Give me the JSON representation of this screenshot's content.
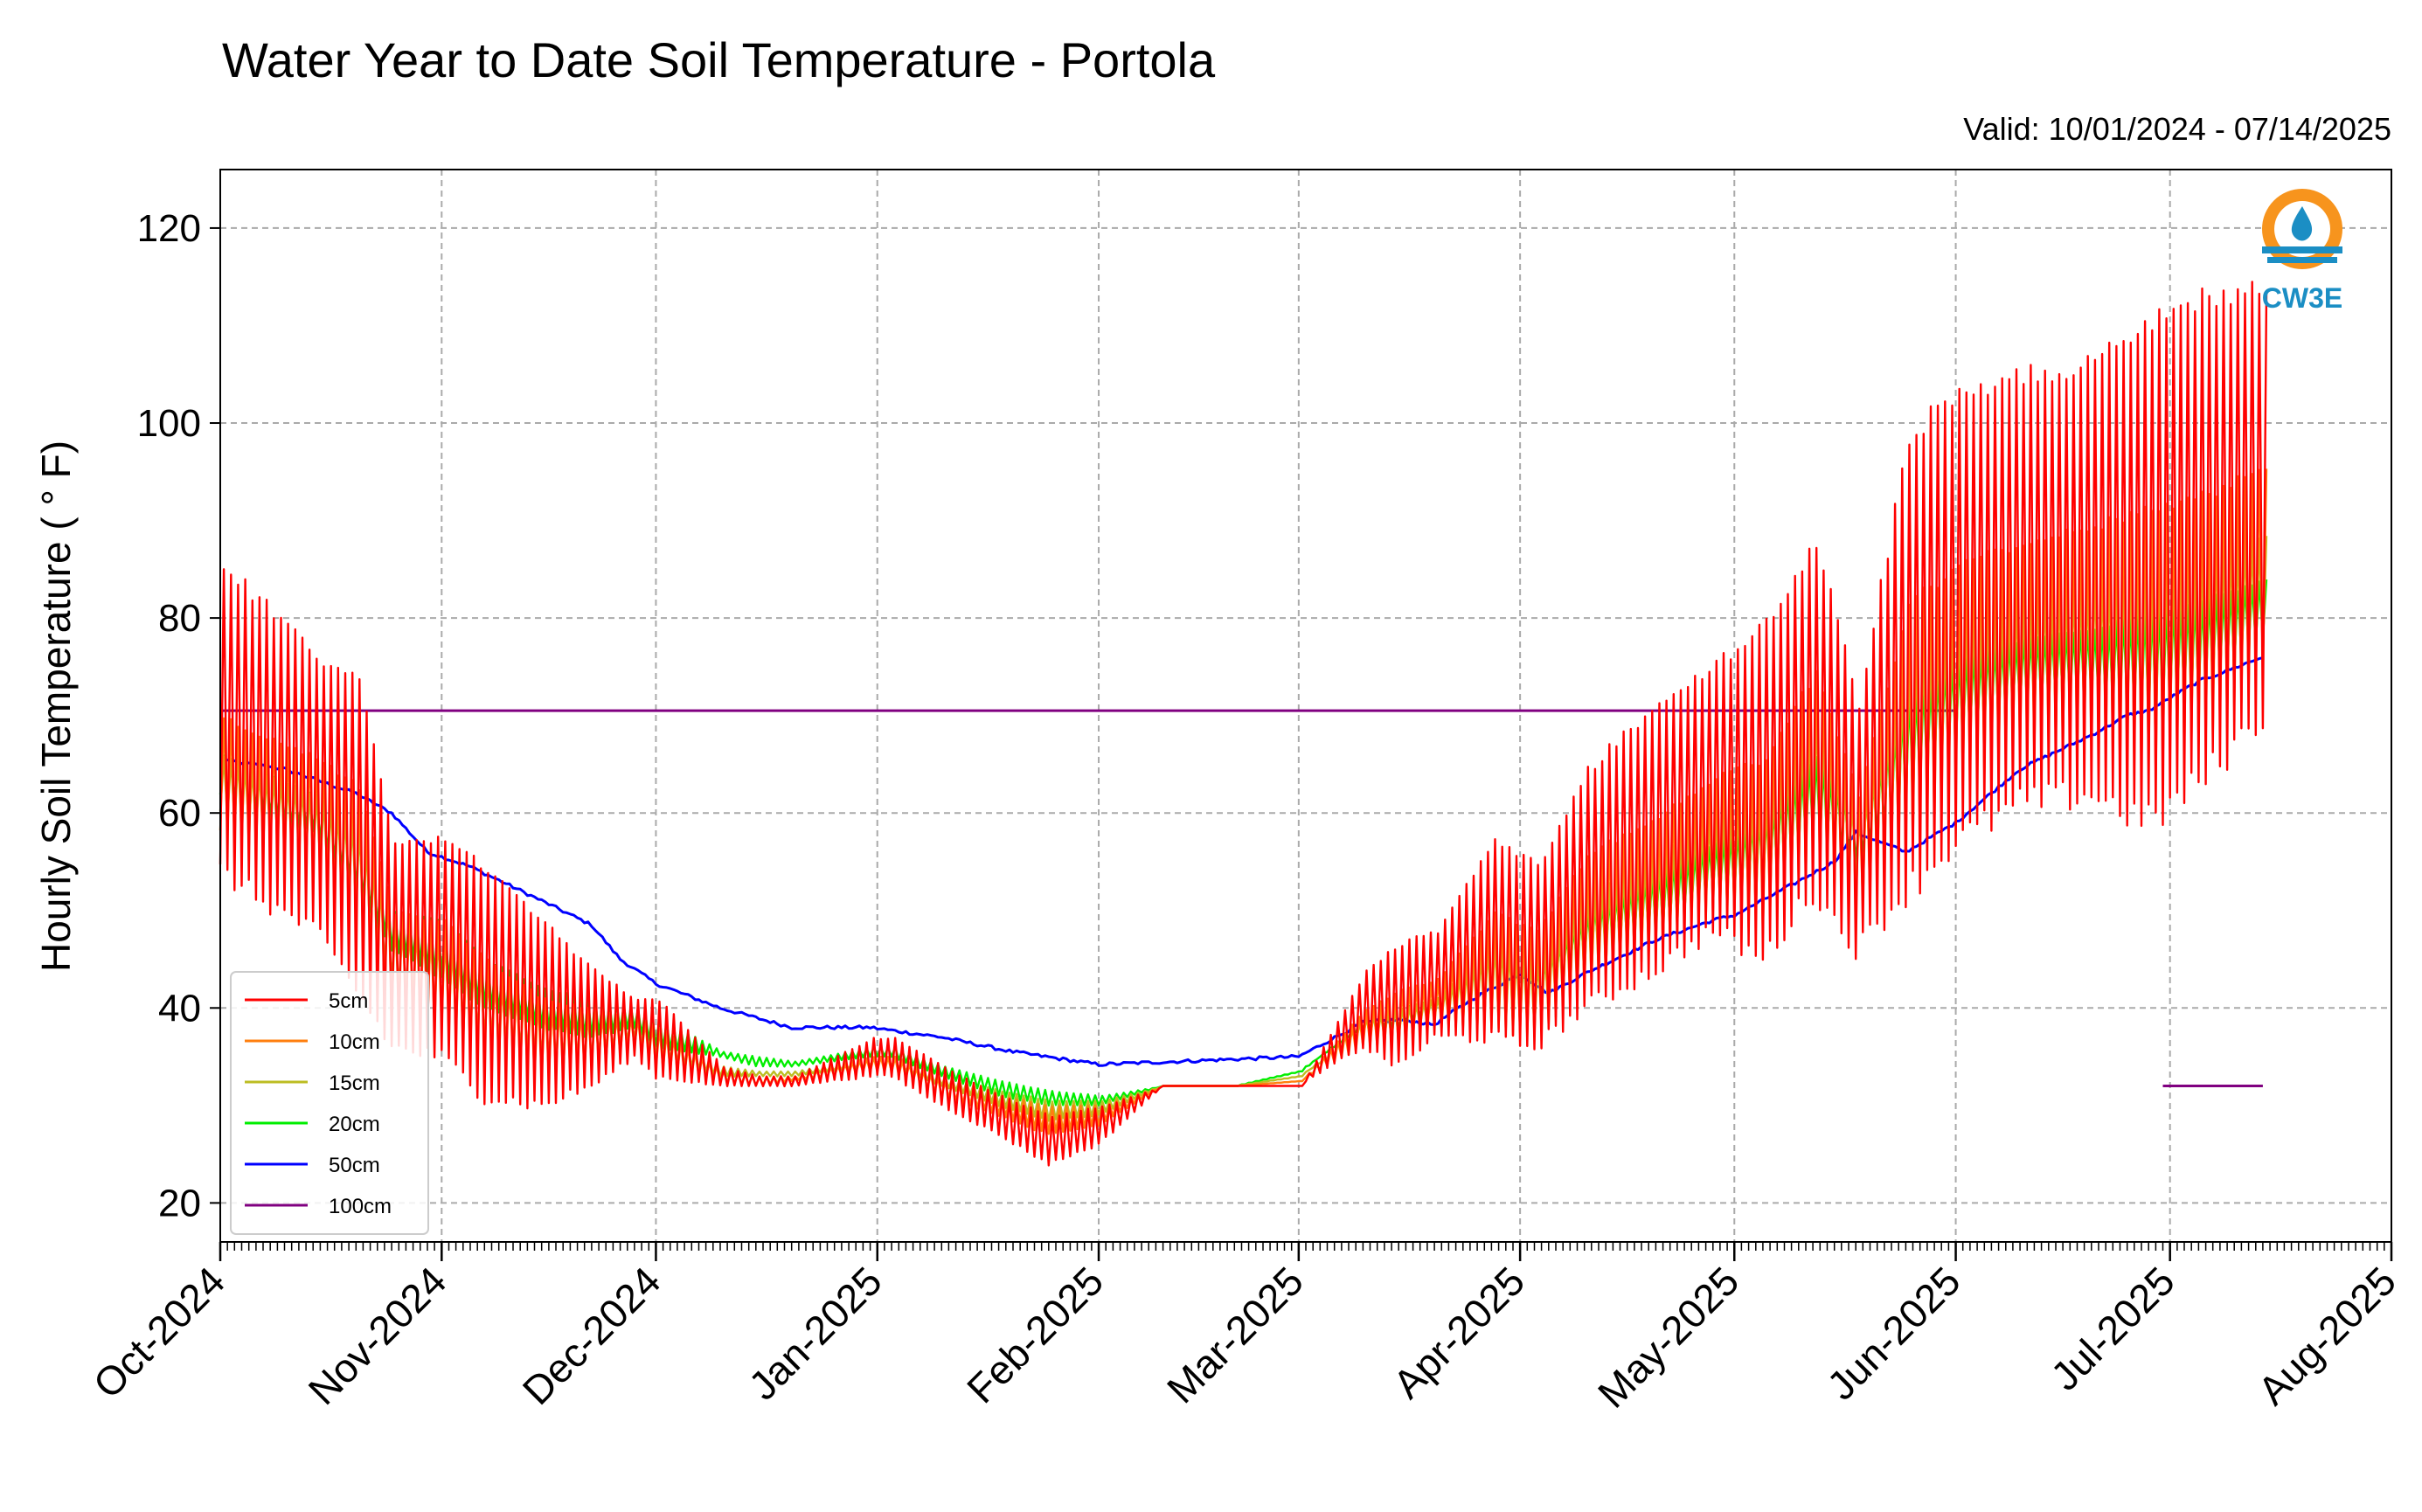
{
  "chart_data": {
    "type": "line",
    "title": "Water Year to Date Soil Temperature - Portola",
    "subtitle": "Valid: 10/01/2024 - 07/14/2025",
    "ylabel": "Hourly Soil Temperature ( ° F)",
    "xlabel": "",
    "ylim": [
      16,
      126
    ],
    "xlim": [
      "2024-10-01",
      "2025-08-01"
    ],
    "yticks": [
      "20",
      "40",
      "60",
      "80",
      "100",
      "120"
    ],
    "xticks": [
      "Oct-2024",
      "Nov-2024",
      "Dec-2024",
      "Jan-2025",
      "Feb-2025",
      "Mar-2025",
      "Apr-2025",
      "May-2025",
      "Jun-2025",
      "Jul-2025",
      "Aug-2025"
    ],
    "xtick_dates": [
      "2024-10-01",
      "2024-11-01",
      "2024-12-01",
      "2025-01-01",
      "2025-02-01",
      "2025-03-01",
      "2025-04-01",
      "2025-05-01",
      "2025-06-01",
      "2025-07-01",
      "2025-08-01"
    ],
    "grid": true,
    "legend_position": "lower-left",
    "logo_text": "CW3E",
    "series": [
      {
        "name": "5cm",
        "color": "#ff0000",
        "diurnal": true,
        "dates": [
          "2024-10-01",
          "2024-10-07",
          "2024-10-14",
          "2024-10-20",
          "2024-10-25",
          "2024-11-01",
          "2024-11-07",
          "2024-11-15",
          "2024-11-22",
          "2024-11-28",
          "2024-12-01",
          "2024-12-10",
          "2024-12-15",
          "2024-12-20",
          "2024-12-31",
          "2025-01-03",
          "2025-01-10",
          "2025-01-18",
          "2025-01-25",
          "2025-02-01",
          "2025-02-10",
          "2025-02-20",
          "2025-03-01",
          "2025-03-10",
          "2025-03-15",
          "2025-03-20",
          "2025-03-28",
          "2025-04-03",
          "2025-04-10",
          "2025-04-20",
          "2025-04-28",
          "2025-05-05",
          "2025-05-12",
          "2025-05-18",
          "2025-05-25",
          "2025-06-01",
          "2025-06-10",
          "2025-06-20",
          "2025-06-28",
          "2025-07-05",
          "2025-07-14"
        ],
        "low": [
          54,
          51,
          48,
          42,
          36,
          35,
          31,
          30,
          32,
          35,
          33,
          32,
          32,
          32,
          33,
          33,
          30,
          27,
          24,
          26,
          32,
          32,
          32,
          36,
          34,
          37,
          37,
          36,
          40,
          44,
          48,
          45,
          52,
          46,
          52,
          57,
          61,
          62,
          59,
          63,
          70
        ],
        "high": [
          86,
          82,
          77,
          74,
          57,
          58,
          55,
          49,
          44,
          41,
          41,
          34,
          33,
          33,
          37,
          37,
          34,
          31,
          29,
          30,
          32,
          32,
          32,
          44,
          47,
          48,
          58,
          55,
          65,
          72,
          76,
          80,
          89,
          72,
          100,
          104,
          106,
          107,
          112,
          114,
          115
        ]
      },
      {
        "name": "10cm",
        "color": "#ff7f0e",
        "diurnal": true,
        "dates": [
          "2024-10-01",
          "2024-10-07",
          "2024-10-14",
          "2024-10-20",
          "2024-10-25",
          "2024-11-01",
          "2024-11-07",
          "2024-11-15",
          "2024-11-22",
          "2024-11-28",
          "2024-12-01",
          "2024-12-10",
          "2024-12-15",
          "2024-12-20",
          "2024-12-31",
          "2025-01-03",
          "2025-01-10",
          "2025-01-18",
          "2025-01-25",
          "2025-02-01",
          "2025-02-10",
          "2025-02-20",
          "2025-03-01",
          "2025-03-10",
          "2025-03-15",
          "2025-03-20",
          "2025-03-28",
          "2025-04-03",
          "2025-04-10",
          "2025-04-20",
          "2025-04-28",
          "2025-05-05",
          "2025-05-12",
          "2025-05-18",
          "2025-05-25",
          "2025-06-01",
          "2025-06-10",
          "2025-06-20",
          "2025-06-28",
          "2025-07-05",
          "2025-07-14"
        ],
        "low": [
          58,
          56,
          54,
          48,
          40,
          38,
          35,
          33,
          34,
          36,
          34,
          32.5,
          32,
          32.5,
          33.5,
          33.5,
          31,
          29,
          27,
          28,
          32,
          32,
          32.5,
          36,
          36,
          38,
          38,
          37,
          42,
          46,
          50,
          48,
          55,
          50,
          56,
          62,
          66,
          67,
          64,
          67,
          74
        ],
        "high": [
          70,
          68,
          66,
          63,
          50,
          49,
          45,
          41,
          40,
          39,
          38,
          33.5,
          33,
          33,
          35,
          35,
          32.5,
          31,
          30,
          30,
          32,
          32,
          32.5,
          40,
          42,
          43,
          50,
          48,
          56,
          60,
          64,
          66,
          75,
          62,
          82,
          86,
          88,
          90,
          92,
          93,
          96
        ]
      },
      {
        "name": "15cm",
        "color": "#bcbd22",
        "diurnal": true,
        "dates": [
          "2024-10-01",
          "2024-10-07",
          "2024-10-14",
          "2024-10-20",
          "2024-10-25",
          "2024-11-01",
          "2024-11-07",
          "2024-11-15",
          "2024-11-22",
          "2024-11-28",
          "2024-12-01",
          "2024-12-10",
          "2024-12-15",
          "2024-12-20",
          "2024-12-31",
          "2025-01-03",
          "2025-01-10",
          "2025-01-18",
          "2025-01-25",
          "2025-02-01",
          "2025-02-10",
          "2025-02-20",
          "2025-03-01",
          "2025-03-10",
          "2025-03-15",
          "2025-03-20",
          "2025-03-28",
          "2025-04-03",
          "2025-04-10",
          "2025-04-20",
          "2025-04-28",
          "2025-05-05",
          "2025-05-12",
          "2025-05-18",
          "2025-05-25",
          "2025-06-01",
          "2025-06-10",
          "2025-06-20",
          "2025-06-28",
          "2025-07-05",
          "2025-07-14"
        ],
        "low": [
          60,
          58,
          56,
          50,
          43,
          40,
          37,
          35,
          35,
          37,
          35,
          33,
          33,
          33,
          34,
          34,
          32,
          30,
          28.5,
          29,
          32,
          32,
          33,
          37,
          37,
          39,
          39,
          38,
          43,
          47,
          51,
          50,
          57,
          53,
          59,
          65,
          69,
          70,
          68,
          70,
          76
        ],
        "high": [
          66,
          64,
          62,
          59,
          48,
          47,
          43,
          40,
          39,
          39,
          38,
          34,
          33.5,
          33.5,
          35,
          35,
          33,
          31.5,
          30.5,
          30.5,
          32,
          32,
          33,
          39,
          40,
          41,
          47,
          45,
          52,
          56,
          60,
          62,
          70,
          60,
          76,
          80,
          82,
          84,
          86,
          87,
          89
        ]
      },
      {
        "name": "20cm",
        "color": "#00ee00",
        "diurnal": true,
        "dates": [
          "2024-10-01",
          "2024-10-07",
          "2024-10-14",
          "2024-10-20",
          "2024-10-25",
          "2024-11-01",
          "2024-11-07",
          "2024-11-15",
          "2024-11-22",
          "2024-11-28",
          "2024-12-01",
          "2024-12-10",
          "2024-12-15",
          "2024-12-20",
          "2024-12-31",
          "2025-01-03",
          "2025-01-10",
          "2025-01-18",
          "2025-01-25",
          "2025-02-01",
          "2025-02-10",
          "2025-02-20",
          "2025-03-01",
          "2025-03-10",
          "2025-03-15",
          "2025-03-20",
          "2025-03-28",
          "2025-04-03",
          "2025-04-10",
          "2025-04-20",
          "2025-04-28",
          "2025-05-05",
          "2025-05-12",
          "2025-05-18",
          "2025-05-25",
          "2025-06-01",
          "2025-06-10",
          "2025-06-20",
          "2025-06-28",
          "2025-07-05",
          "2025-07-14"
        ],
        "low": [
          62,
          60,
          58,
          52,
          46,
          43,
          40,
          38,
          37,
          38,
          36,
          35,
          34,
          34,
          35,
          35,
          33,
          31,
          30,
          30,
          32,
          32,
          33.5,
          38,
          38,
          40,
          40,
          40,
          45,
          48,
          52,
          52,
          58,
          55,
          61,
          67,
          71,
          72,
          70,
          72,
          78
        ],
        "high": [
          66,
          64,
          62,
          58,
          50,
          49,
          45,
          42,
          41,
          40,
          39,
          35.5,
          35,
          34.5,
          36,
          36,
          34,
          32.5,
          31.5,
          31,
          32,
          32,
          33.5,
          39,
          40,
          41,
          47,
          44,
          50,
          54,
          57,
          60,
          66,
          60,
          72,
          76,
          78,
          79,
          81,
          82,
          84
        ]
      },
      {
        "name": "50cm",
        "color": "#0000ff",
        "diurnal": false,
        "dates": [
          "2024-10-01",
          "2024-10-10",
          "2024-10-20",
          "2024-10-25",
          "2024-10-30",
          "2024-11-05",
          "2024-11-15",
          "2024-11-22",
          "2024-11-26",
          "2024-11-28",
          "2024-12-01",
          "2024-12-10",
          "2024-12-20",
          "2024-12-31",
          "2025-01-10",
          "2025-01-20",
          "2025-02-01",
          "2025-02-15",
          "2025-03-01",
          "2025-03-10",
          "2025-03-15",
          "2025-03-20",
          "2025-03-25",
          "2025-04-01",
          "2025-04-05",
          "2025-04-10",
          "2025-04-20",
          "2025-04-28",
          "2025-05-01",
          "2025-05-10",
          "2025-05-15",
          "2025-05-18",
          "2025-05-25",
          "2025-06-01",
          "2025-06-10",
          "2025-06-20",
          "2025-06-25",
          "2025-06-28",
          "2025-07-05",
          "2025-07-14"
        ],
        "values": [
          65.5,
          64.5,
          62,
          60,
          56,
          54.5,
          51,
          48.5,
          45,
          44,
          42.5,
          40,
          38,
          38,
          37,
          35.5,
          34.2,
          34.6,
          35,
          38.5,
          38.8,
          38.3,
          40.8,
          43.5,
          41.5,
          43.5,
          47,
          49,
          49.5,
          53,
          55,
          58,
          56,
          59,
          64.5,
          68,
          70,
          70.5,
          73.5,
          76
        ]
      },
      {
        "name": "100cm",
        "color": "#800080",
        "diurnal": false,
        "segments": true,
        "dates": [
          "2024-10-01",
          "2025-06-01",
          "2025-06-30",
          "2025-07-14"
        ],
        "values": [
          70.5,
          70.5,
          32,
          32
        ]
      }
    ]
  }
}
